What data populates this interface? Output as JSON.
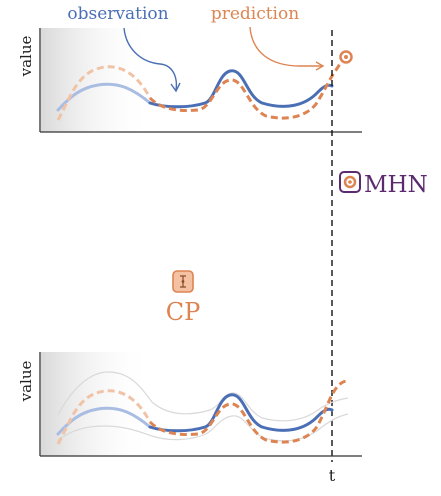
{
  "top_panel": {
    "observation_label": "observation",
    "prediction_label": "prediction",
    "y_axis_label": "value"
  },
  "bottom_panel": {
    "y_axis_label": "value"
  },
  "time_marker_label": "t",
  "mhn": {
    "label": "MHN",
    "icon": "circled-dot-icon"
  },
  "cp": {
    "label": "CP",
    "icon": "interval-icon"
  },
  "colors": {
    "observation": "#4b6fb5",
    "prediction": "#dd8452",
    "mhn": "#5c2a6e",
    "cp": "#dd8452",
    "axis": "#333333"
  }
}
